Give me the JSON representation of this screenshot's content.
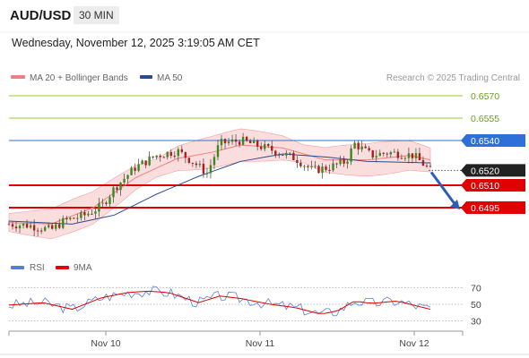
{
  "header": {
    "pair": "AUD/USD",
    "timeframe": "30 MIN"
  },
  "datetime": "Wednesday, November 12, 2025 3:19:05 AM CET",
  "legend": {
    "ma_bb": {
      "label": "MA 20 + Bollinger Bands",
      "color": "#f08080"
    },
    "ma50": {
      "label": "MA 50",
      "color": "#2b4c8c"
    },
    "rsi": {
      "label": "RSI",
      "color": "#5b7fd6"
    },
    "ma9": {
      "label": "9MA",
      "color": "#e00000"
    }
  },
  "credit": "Research © 2025 Trading Central",
  "chart_data": [
    {
      "type": "line",
      "title": "",
      "x_ticks": [
        "Nov 10",
        "Nov 11",
        "Nov 12"
      ],
      "price_levels": [
        {
          "value": "0.6570",
          "kind": "target",
          "color": "#9acd32"
        },
        {
          "value": "0.6555",
          "kind": "target",
          "color": "#9acd32"
        },
        {
          "value": "0.6540",
          "kind": "resistance",
          "color": "#2f6fd8"
        },
        {
          "value": "0.6520",
          "kind": "last",
          "color": "#222222"
        },
        {
          "value": "0.6510",
          "kind": "support",
          "color": "#e00000"
        },
        {
          "value": "0.6495",
          "kind": "support",
          "color": "#e00000"
        }
      ],
      "ylim": [
        0.648,
        0.6595
      ],
      "forecast_arrow": {
        "from": 0.652,
        "to": 0.6495,
        "direction": "down",
        "color": "#2b5fb5"
      },
      "series": [
        {
          "name": "MA 20 + Bollinger Bands",
          "approx_path": [
            [
              0,
              0.6485
            ],
            [
              0.1,
              0.6484
            ],
            [
              0.2,
              0.6495
            ],
            [
              0.3,
              0.6515
            ],
            [
              0.4,
              0.6528
            ],
            [
              0.48,
              0.6532
            ],
            [
              0.55,
              0.6537
            ],
            [
              0.65,
              0.6535
            ],
            [
              0.75,
              0.6527
            ],
            [
              0.85,
              0.6527
            ],
            [
              0.95,
              0.653
            ],
            [
              1.0,
              0.6527
            ]
          ]
        },
        {
          "name": "MA 50",
          "approx_path": [
            [
              0,
              0.6486
            ],
            [
              0.15,
              0.6484
            ],
            [
              0.25,
              0.649
            ],
            [
              0.35,
              0.6504
            ],
            [
              0.45,
              0.6516
            ],
            [
              0.55,
              0.6526
            ],
            [
              0.65,
              0.6531
            ],
            [
              0.75,
              0.6529
            ],
            [
              0.85,
              0.6526
            ],
            [
              1.0,
              0.6525
            ]
          ]
        }
      ]
    },
    {
      "type": "line",
      "title": "",
      "y_ticks": [
        "70",
        "50",
        "30"
      ],
      "ylim": [
        25,
        80
      ],
      "series": [
        {
          "name": "RSI"
        },
        {
          "name": "9MA"
        }
      ]
    }
  ]
}
